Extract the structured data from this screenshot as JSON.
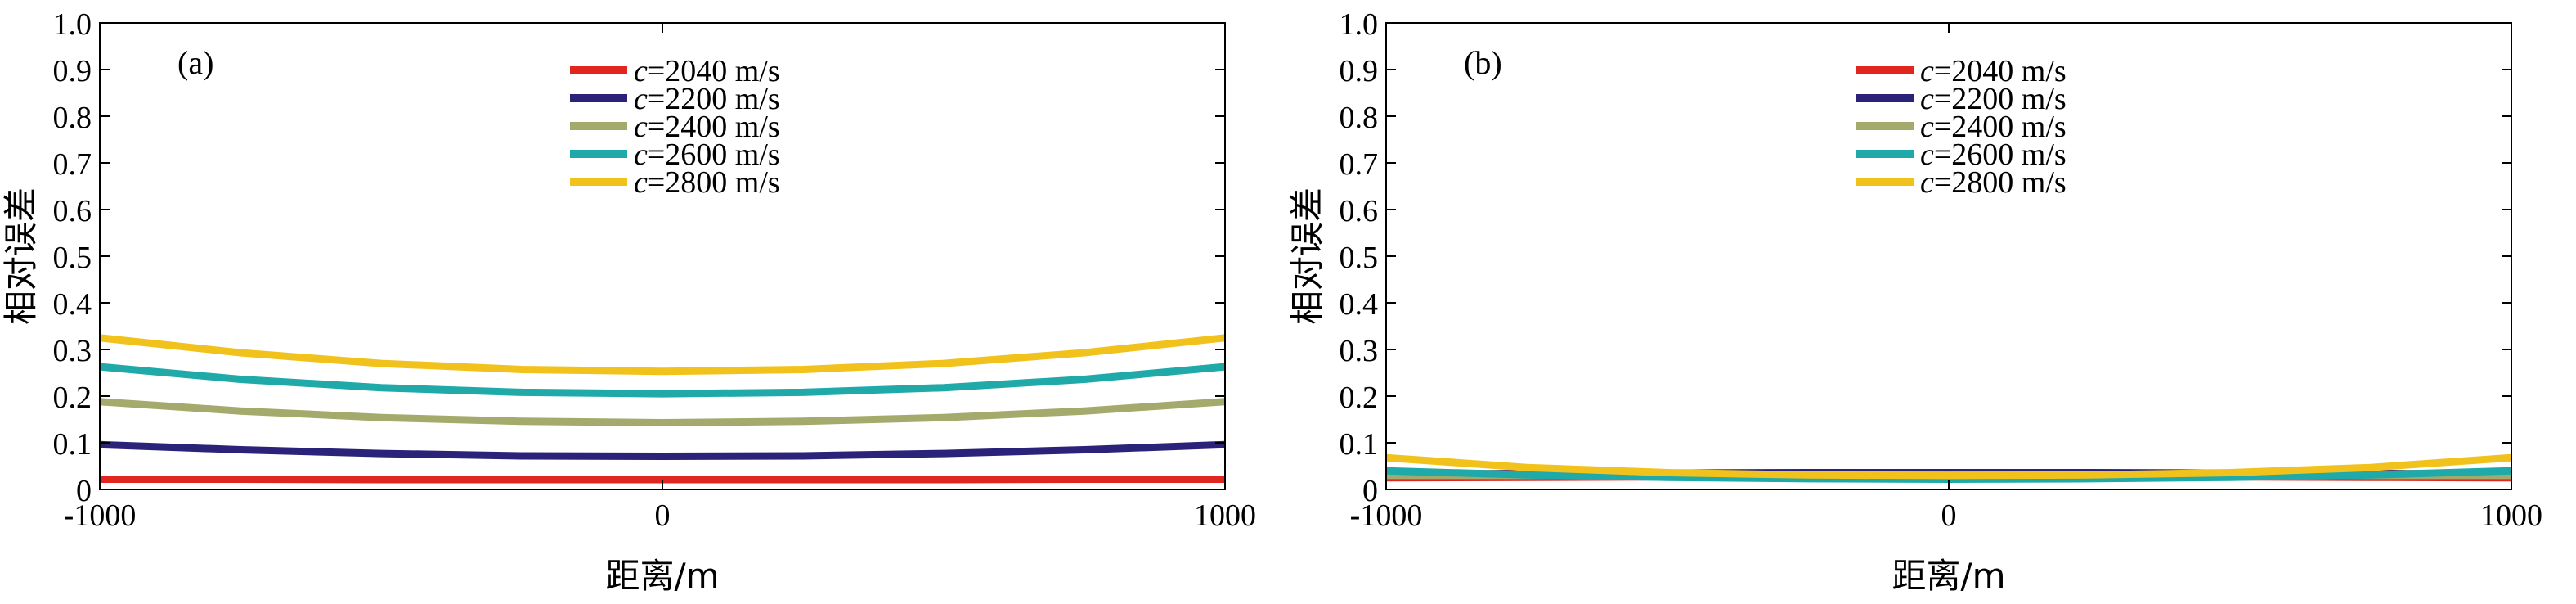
{
  "chart_data": [
    {
      "type": "line",
      "panel_label": "(a)",
      "xlabel": "距离/m",
      "ylabel": "相对误差",
      "xlim": [
        -1000,
        1000
      ],
      "ylim": [
        0,
        1.0
      ],
      "x_ticks": [
        "-1000",
        "0",
        "1000"
      ],
      "y_ticks": [
        "0",
        "0.1",
        "0.2",
        "0.3",
        "0.4",
        "0.5",
        "0.6",
        "0.7",
        "0.8",
        "0.9",
        "1.0"
      ],
      "grid": false,
      "legend_position": "top-center",
      "x": [
        -1000,
        -750,
        -500,
        -250,
        0,
        250,
        500,
        750,
        1000
      ],
      "series": [
        {
          "name_prefix": "c",
          "name": "=2040 m/s",
          "color": "#e0261f",
          "values": [
            0.022,
            0.022,
            0.021,
            0.021,
            0.021,
            0.021,
            0.021,
            0.022,
            0.022
          ]
        },
        {
          "name_prefix": "c",
          "name": "=2200 m/s",
          "color": "#2a2379",
          "values": [
            0.096,
            0.085,
            0.077,
            0.072,
            0.071,
            0.072,
            0.077,
            0.085,
            0.096
          ]
        },
        {
          "name_prefix": "c",
          "name": "=2400 m/s",
          "color": "#a3aa6c",
          "values": [
            0.188,
            0.168,
            0.154,
            0.146,
            0.143,
            0.146,
            0.154,
            0.168,
            0.188
          ]
        },
        {
          "name_prefix": "c",
          "name": "=2600 m/s",
          "color": "#1fa9a8",
          "values": [
            0.263,
            0.236,
            0.218,
            0.208,
            0.205,
            0.208,
            0.218,
            0.236,
            0.263
          ]
        },
        {
          "name_prefix": "c",
          "name": "=2800 m/s",
          "color": "#f2c21c",
          "values": [
            0.325,
            0.293,
            0.27,
            0.257,
            0.253,
            0.257,
            0.27,
            0.293,
            0.325
          ]
        }
      ]
    },
    {
      "type": "line",
      "panel_label": "(b)",
      "xlabel": "距离/m",
      "ylabel": "相对误差",
      "xlim": [
        -1000,
        1000
      ],
      "ylim": [
        0,
        1.0
      ],
      "x_ticks": [
        "-1000",
        "0",
        "1000"
      ],
      "y_ticks": [
        "0",
        "0.1",
        "0.2",
        "0.3",
        "0.4",
        "0.5",
        "0.6",
        "0.7",
        "0.8",
        "0.9",
        "1.0"
      ],
      "grid": false,
      "legend_position": "top-center",
      "x": [
        -1000,
        -750,
        -500,
        -250,
        0,
        250,
        500,
        750,
        1000
      ],
      "series": [
        {
          "name_prefix": "c",
          "name": "=2040 m/s",
          "color": "#e0261f",
          "values": [
            0.025,
            0.026,
            0.027,
            0.028,
            0.028,
            0.028,
            0.027,
            0.026,
            0.025
          ]
        },
        {
          "name_prefix": "c",
          "name": "=2200 m/s",
          "color": "#2a2379",
          "values": [
            0.033,
            0.034,
            0.035,
            0.036,
            0.036,
            0.036,
            0.035,
            0.034,
            0.033
          ]
        },
        {
          "name_prefix": "c",
          "name": "=2400 m/s",
          "color": "#a3aa6c",
          "values": [
            0.03,
            0.03,
            0.031,
            0.031,
            0.031,
            0.031,
            0.031,
            0.03,
            0.03
          ]
        },
        {
          "name_prefix": "c",
          "name": "=2600 m/s",
          "color": "#1fa9a8",
          "values": [
            0.04,
            0.031,
            0.026,
            0.023,
            0.022,
            0.023,
            0.026,
            0.031,
            0.04
          ]
        },
        {
          "name_prefix": "c",
          "name": "=2800 m/s",
          "color": "#f2c21c",
          "values": [
            0.068,
            0.047,
            0.036,
            0.031,
            0.03,
            0.031,
            0.036,
            0.047,
            0.068
          ]
        }
      ]
    }
  ]
}
